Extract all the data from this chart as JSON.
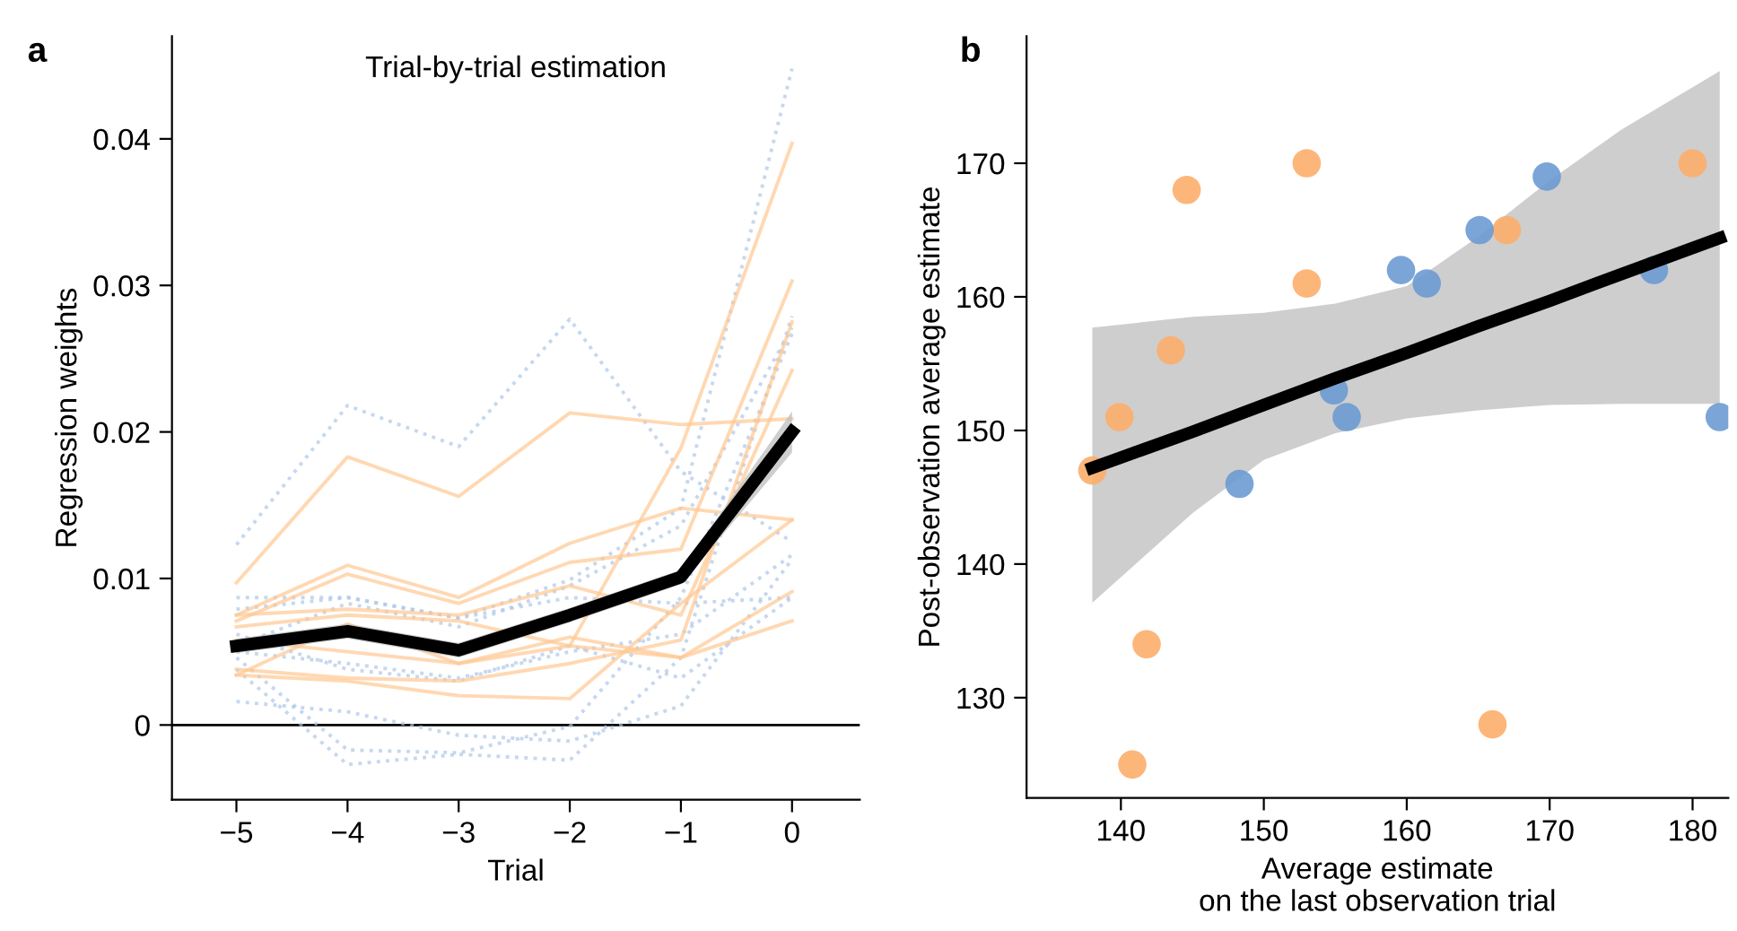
{
  "chart_data": [
    {
      "type": "line",
      "title": "Trial-by-trial estimation",
      "xlabel": "Trial",
      "ylabel": "Regression weights",
      "annotations": [
        "a"
      ],
      "x": [
        -5,
        -4,
        -3,
        -2,
        -1,
        0
      ],
      "xlim": [
        -5.58,
        0.61
      ],
      "ylim": [
        -0.0051,
        0.047
      ],
      "xticks": [
        {
          "value": -5,
          "label": "−5"
        },
        {
          "value": -4,
          "label": "−4"
        },
        {
          "value": -3,
          "label": "−3"
        },
        {
          "value": -2,
          "label": "−2"
        },
        {
          "value": -1,
          "label": "−1"
        },
        0
      ],
      "yticks": [
        0,
        0.01,
        0.02,
        0.03,
        0.04
      ],
      "ref_lines": [
        {
          "axis": "y",
          "value": 0,
          "color": "#000000"
        }
      ],
      "series": [
        {
          "color": "#aec7e8",
          "line_style": "dotted",
          "values": [
            0.0123,
            0.0218,
            0.019,
            0.0277,
            0.0173,
            0.0125
          ]
        },
        {
          "color": "#aec7e8",
          "line_style": "dotted",
          "values": [
            0.0087,
            0.0087,
            0.0073,
            0.0099,
            0.0148,
            0.0448
          ]
        },
        {
          "color": "#aec7e8",
          "line_style": "dotted",
          "values": [
            0.0038,
            -0.0027,
            -0.002,
            -0.0024,
            0.0046,
            0.0279
          ]
        },
        {
          "color": "#aec7e8",
          "line_style": "dotted",
          "values": [
            0.0016,
            0.0009,
            -0.0007,
            -0.0011,
            0.0013,
            0.0113
          ]
        },
        {
          "color": "#aec7e8",
          "line_style": "dotted",
          "values": [
            0.0046,
            -0.0017,
            -0.0019,
            -0.0001,
            0.0087,
            0.0267
          ]
        },
        {
          "color": "#aec7e8",
          "line_style": "dotted",
          "values": [
            0.0079,
            0.0087,
            0.0073,
            0.0087,
            0.0083,
            0.0087
          ]
        },
        {
          "color": "#aec7e8",
          "line_style": "dotted",
          "values": [
            0.0062,
            0.0038,
            0.003,
            0.0054,
            0.0032,
            0.0087
          ]
        },
        {
          "color": "#aec7e8",
          "line_style": "dotted",
          "values": [
            0.0054,
            0.0083,
            0.0067,
            0.0095,
            0.0136,
            0.0271
          ]
        },
        {
          "color": "#aec7e8",
          "line_style": "dotted",
          "values": [
            0.005,
            0.0042,
            0.0032,
            0.005,
            0.0062,
            0.0116
          ]
        },
        {
          "color": "#ffc891",
          "line_style": "solid",
          "values": [
            0.0097,
            0.0183,
            0.0156,
            0.0213,
            0.0205,
            0.0209
          ]
        },
        {
          "color": "#ffc891",
          "line_style": "solid",
          "values": [
            0.0075,
            0.0109,
            0.0087,
            0.0124,
            0.0148,
            0.014
          ]
        },
        {
          "color": "#ffc891",
          "line_style": "solid",
          "values": [
            0.0071,
            0.0103,
            0.0083,
            0.0111,
            0.012,
            0.0303
          ]
        },
        {
          "color": "#ffc891",
          "line_style": "solid",
          "values": [
            0.0034,
            0.0069,
            0.0042,
            0.0054,
            0.0189,
            0.0397
          ]
        },
        {
          "color": "#ffc891",
          "line_style": "solid",
          "values": [
            0.0034,
            0.003,
            0.002,
            0.0018,
            0.0083,
            0.014
          ]
        },
        {
          "color": "#ffc891",
          "line_style": "solid",
          "values": [
            0.0067,
            0.0075,
            0.0071,
            0.0054,
            0.0046,
            0.0071
          ]
        },
        {
          "color": "#ffc891",
          "line_style": "solid",
          "values": [
            0.0058,
            0.005,
            0.0042,
            0.006,
            0.0046,
            0.0091
          ]
        },
        {
          "color": "#ffc891",
          "line_style": "solid",
          "values": [
            0.0038,
            0.0032,
            0.003,
            0.0042,
            0.0058,
            0.0275
          ]
        },
        {
          "color": "#ffc891",
          "line_style": "solid",
          "values": [
            0.0075,
            0.0079,
            0.0075,
            0.0095,
            0.0075,
            0.0242
          ]
        },
        {
          "color": "#000000",
          "line_style": "solid",
          "values": [
            0.0054,
            0.0064,
            0.0051,
            0.0075,
            0.0101,
            0.02
          ],
          "lower": [
            0.0049,
            0.0059,
            0.0046,
            0.007,
            0.0096,
            0.0186
          ],
          "upper": [
            0.0059,
            0.0069,
            0.0056,
            0.008,
            0.0106,
            0.0214
          ]
        }
      ]
    },
    {
      "type": "scatter",
      "xlabel": "Average estimate\non the last observation trial",
      "ylabel": "Post-observation average estimate",
      "annotations": [
        "b"
      ],
      "xlim": [
        133.4,
        182.5
      ],
      "ylim": [
        122.5,
        179.5
      ],
      "xticks": [
        140,
        150,
        160,
        170,
        180
      ],
      "yticks": [
        130,
        140,
        150,
        160,
        170
      ],
      "series": [
        {
          "color": "#fdae6b",
          "x": [
            138.0,
            139.9,
            143.5,
            144.6,
            141.8,
            140.8,
            153.0,
            153.0,
            167.0,
            180.0,
            166.0
          ],
          "values": [
            147,
            151,
            156,
            168,
            134,
            125,
            170,
            161,
            165,
            170,
            128
          ]
        },
        {
          "color": "#6b9bd2",
          "x": [
            148.3,
            154.9,
            155.8,
            159.6,
            161.4,
            165.1,
            169.8,
            177.3,
            181.9
          ],
          "values": [
            146,
            153,
            151,
            162,
            161,
            165,
            169,
            162,
            151
          ]
        },
        {
          "type": "line",
          "color": "#000000",
          "x": [
            138,
            145,
            150,
            155,
            160,
            165,
            170,
            175,
            181.9
          ],
          "values": [
            147.2,
            149.9,
            151.9,
            153.9,
            155.8,
            157.8,
            159.7,
            161.7,
            164.4
          ],
          "lower": [
            137.1,
            143.8,
            147.8,
            149.8,
            150.9,
            151.5,
            151.9,
            152.0,
            152.0
          ],
          "upper": [
            157.7,
            158.5,
            158.8,
            159.5,
            160.8,
            164.5,
            168.7,
            172.5,
            176.9
          ]
        }
      ]
    }
  ]
}
